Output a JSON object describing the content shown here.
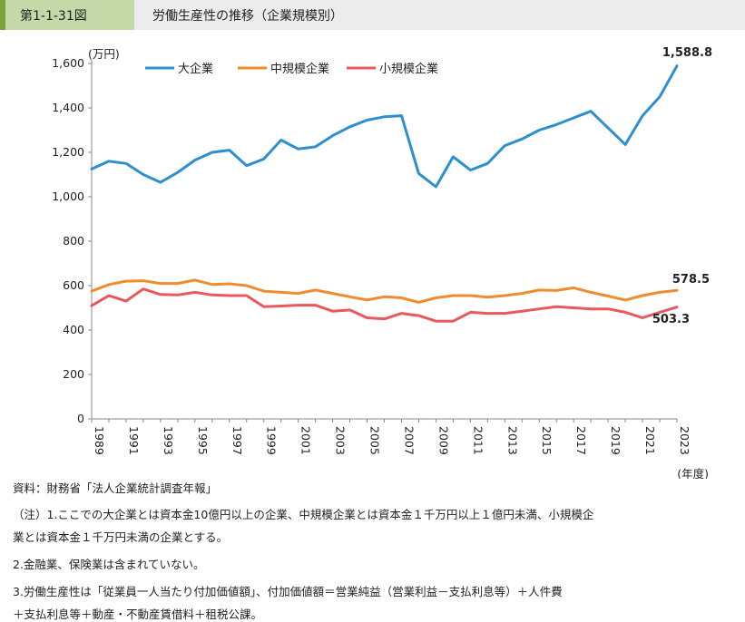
{
  "header": {
    "figure_number": "第1-1-31図",
    "title": "労働生産性の推移（企業規模別）"
  },
  "chart_data": {
    "type": "line",
    "ylabel": "(万円)",
    "xlabel": "(年度)",
    "ylim": [
      0,
      1600
    ],
    "yticks": [
      0,
      200,
      400,
      600,
      800,
      "1,000",
      "1,200",
      "1,400",
      "1,600"
    ],
    "xtick_labels": [
      "1989",
      "1991",
      "1993",
      "1995",
      "1997",
      "1999",
      "2001",
      "2003",
      "2005",
      "2007",
      "2009",
      "2011",
      "2013",
      "2015",
      "2017",
      "2019",
      "2021",
      "2023"
    ],
    "x": [
      1989,
      1990,
      1991,
      1992,
      1993,
      1994,
      1995,
      1996,
      1997,
      1998,
      1999,
      2000,
      2001,
      2002,
      2003,
      2004,
      2005,
      2006,
      2007,
      2008,
      2009,
      2010,
      2011,
      2012,
      2013,
      2014,
      2015,
      2016,
      2017,
      2018,
      2019,
      2020,
      2021,
      2022,
      2023
    ],
    "legend_position": "top-left",
    "grid": false,
    "series": [
      {
        "name": "大企業",
        "color": "#2e8fcf",
        "values": [
          1125,
          1160,
          1150,
          1100,
          1065,
          1110,
          1165,
          1200,
          1210,
          1140,
          1170,
          1255,
          1215,
          1225,
          1275,
          1315,
          1345,
          1360,
          1365,
          1105,
          1045,
          1180,
          1120,
          1150,
          1230,
          1260,
          1300,
          1325,
          1355,
          1385,
          1310,
          1235,
          1365,
          1450,
          1588.8
        ],
        "end_label": "1,588.8"
      },
      {
        "name": "中規模企業",
        "color": "#f08c2c",
        "values": [
          575,
          605,
          620,
          622,
          610,
          610,
          625,
          605,
          608,
          600,
          575,
          570,
          565,
          580,
          565,
          550,
          535,
          550,
          545,
          525,
          545,
          555,
          555,
          548,
          555,
          565,
          580,
          578,
          590,
          570,
          553,
          535,
          555,
          570,
          578.5
        ],
        "end_label": "578.5"
      },
      {
        "name": "小規模企業",
        "color": "#e8585c",
        "values": [
          510,
          555,
          530,
          585,
          560,
          558,
          570,
          558,
          555,
          555,
          505,
          508,
          512,
          512,
          485,
          490,
          455,
          450,
          475,
          465,
          440,
          440,
          480,
          475,
          475,
          485,
          495,
          505,
          500,
          495,
          495,
          480,
          455,
          480,
          503.3
        ],
        "end_label": "503.3"
      }
    ]
  },
  "notes": {
    "source": "資料：財務省「法人企業統計調査年報」",
    "note1_a": "（注）1.ここでの大企業とは資本金10億円以上の企業、中規模企業とは資本金１千万円以上１億円未満、小規模企",
    "note1_b": "業とは資本金１千万円未満の企業とする。",
    "note2": "2.金融業、保険業は含まれていない。",
    "note3_a": "3.労働生産性は「従業員一人当たり付加価値額」、付加価値額＝営業純益（営業利益－支払利息等）＋人件費",
    "note3_b": "＋支払利息等＋動産・不動産賃借料＋租税公課。"
  }
}
